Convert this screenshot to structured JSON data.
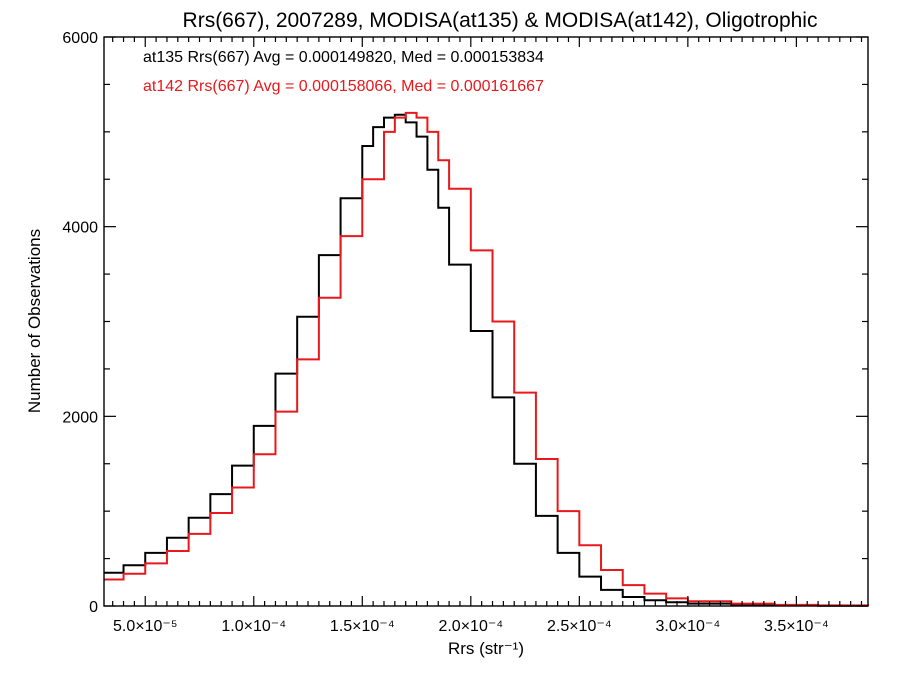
{
  "chart_data": {
    "type": "line",
    "style": "step-histogram",
    "title": "Rrs(667), 2007289, MODISA(at135) & MODISA(at142), Oligotrophic",
    "xlabel": "Rrs (str⁻¹)",
    "ylabel": "Number of Observations",
    "xlim": [
      3.1e-05,
      0.000383
    ],
    "ylim": [
      0,
      6000
    ],
    "x_ticks": [
      5e-05,
      0.0001,
      0.00015,
      0.0002,
      0.00025,
      0.0003,
      0.00035
    ],
    "x_tick_labels": [
      "5.0×10⁻⁵",
      "1.0×10⁻⁴",
      "1.5×10⁻⁴",
      "2.0×10⁻⁴",
      "2.5×10⁻⁴",
      "3.0×10⁻⁴",
      "3.5×10⁻⁴"
    ],
    "y_ticks": [
      0,
      2000,
      4000,
      6000
    ],
    "y_tick_labels": [
      "0",
      "2000",
      "4000",
      "6000"
    ],
    "legend_placement": "top-left",
    "grid": false,
    "series": [
      {
        "name": "at135",
        "color": "#000000",
        "legend_text": "at135 Rrs(667) Avg = 0.000149820, Med = 0.000153834",
        "x": [
          3.1e-05,
          4e-05,
          5e-05,
          6e-05,
          7e-05,
          8e-05,
          9e-05,
          0.0001,
          0.00011,
          0.00012,
          0.00013,
          0.00014,
          0.00015,
          0.000155,
          0.00016,
          0.000165,
          0.00017,
          0.000175,
          0.00018,
          0.000185,
          0.00019,
          0.0002,
          0.00021,
          0.00022,
          0.00023,
          0.00024,
          0.00025,
          0.00026,
          0.00027,
          0.00028,
          0.00029,
          0.0003,
          0.00032,
          0.00034,
          0.00036,
          0.000383
        ],
        "y": [
          350,
          430,
          560,
          720,
          930,
          1180,
          1480,
          1900,
          2450,
          3050,
          3700,
          4300,
          4850,
          5050,
          5150,
          5180,
          5100,
          4950,
          4600,
          4200,
          3600,
          2900,
          2200,
          1500,
          950,
          560,
          310,
          170,
          95,
          60,
          40,
          25,
          12,
          6,
          3,
          1
        ]
      },
      {
        "name": "at142",
        "color": "#e8181c",
        "legend_text": "at142 Rrs(667) Avg = 0.000158066, Med = 0.000161667",
        "x": [
          3.1e-05,
          4e-05,
          5e-05,
          6e-05,
          7e-05,
          8e-05,
          9e-05,
          0.0001,
          0.00011,
          0.00012,
          0.00013,
          0.00014,
          0.00015,
          0.00016,
          0.000165,
          0.00017,
          0.000175,
          0.00018,
          0.000185,
          0.00019,
          0.0002,
          0.00021,
          0.00022,
          0.00023,
          0.00024,
          0.00025,
          0.00026,
          0.00027,
          0.00028,
          0.00029,
          0.0003,
          0.00032,
          0.00034,
          0.00036,
          0.000383
        ],
        "y": [
          280,
          340,
          450,
          580,
          760,
          980,
          1250,
          1600,
          2050,
          2600,
          3250,
          3900,
          4500,
          5000,
          5150,
          5200,
          5150,
          5000,
          4700,
          4400,
          3750,
          3000,
          2250,
          1550,
          1000,
          640,
          380,
          220,
          130,
          80,
          50,
          25,
          12,
          6,
          2
        ]
      }
    ]
  }
}
